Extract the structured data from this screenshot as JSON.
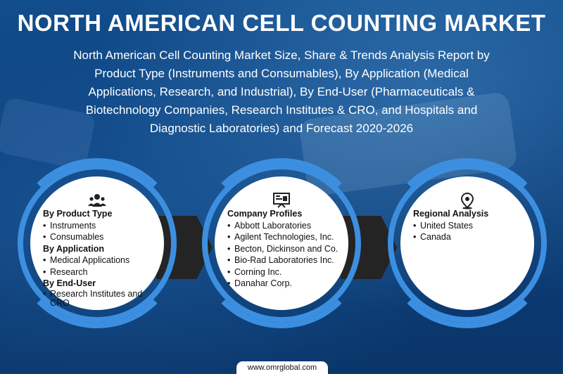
{
  "header": {
    "title": "NORTH AMERICAN CELL COUNTING MARKET",
    "subtitle": "North American Cell Counting Market Size, Share & Trends Analysis Report by Product Type (Instruments and Consumables), By Application (Medical Applications, Research, and Industrial), By End-User (Pharmaceuticals & Biotechnology Companies, Research Institutes & CRO, and Hospitals and Diagnostic Laboratories) and Forecast 2020-2026"
  },
  "colors": {
    "ring": "#3c8fe0",
    "background": "#0d3f78",
    "connector": "#242424"
  },
  "segmentation": {
    "icon": "people-gear-icon",
    "groups": [
      {
        "heading": "By Product Type",
        "items": [
          "Instruments",
          "Consumables"
        ]
      },
      {
        "heading": "By Application",
        "items": [
          "Medical Applications",
          "Research"
        ]
      },
      {
        "heading": "By End-User",
        "items": [
          "Research Institutes and CRO"
        ]
      }
    ]
  },
  "companies": {
    "icon": "presentation-board-icon",
    "heading": "Company Profiles",
    "items": [
      "Abbott Laboratories",
      "Agilent Technologies, Inc.",
      "Becton, Dickinson and Co.",
      "Bio-Rad Laboratories Inc.",
      "Corning Inc.",
      "Danahar Corp."
    ]
  },
  "regional": {
    "icon": "location-pin-icon",
    "heading": "Regional Analysis",
    "items": [
      "United States",
      "Canada"
    ]
  },
  "footer": {
    "website": "www.omrglobal.com"
  }
}
